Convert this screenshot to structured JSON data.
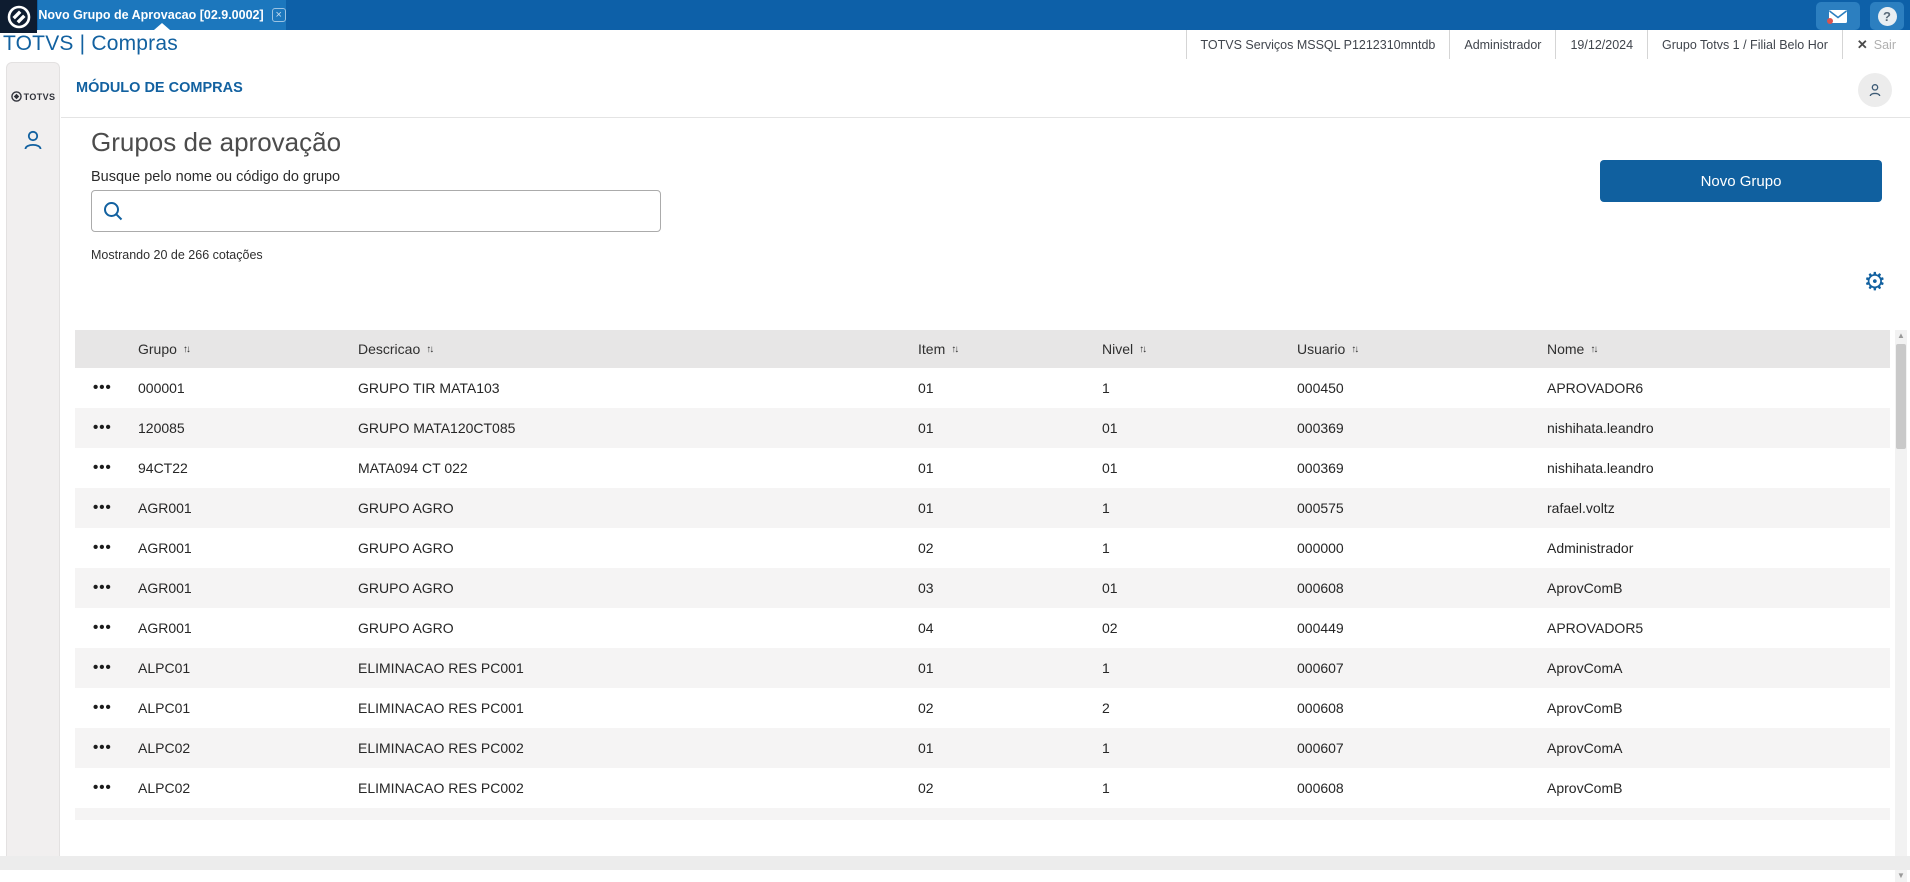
{
  "topbar": {
    "tab_label": "Novo Grupo de Aprovacao [02.9.0002]",
    "tab_close": "×",
    "help_label": "?"
  },
  "header": {
    "brand": "TOTVS | Compras",
    "info_env": "TOTVS Serviços MSSQL P1212310mntdb",
    "info_user": "Administrador",
    "info_date": "19/12/2024",
    "info_branch": "Grupo Totvs 1 / Filial Belo Hor",
    "logout_x": "✕",
    "logout_label": "Sair"
  },
  "sidebar": {
    "logo_text": "TOTVS"
  },
  "module": {
    "title": "MÓDULO DE COMPRAS"
  },
  "page": {
    "title": "Grupos de aprovação",
    "search_label": "Busque pelo nome ou código do grupo",
    "search_value": "",
    "new_group_button": "Novo Grupo",
    "results_summary": "Mostrando 20 de 266 cotações",
    "gear_icon": "⚙"
  },
  "table": {
    "columns": [
      "Grupo",
      "Descricao",
      "Item",
      "Nivel",
      "Usuario",
      "Nome"
    ],
    "sort_glyph": "↑↓",
    "row_menu_glyph": "•••",
    "rows": [
      {
        "grupo": "000001",
        "descricao": "GRUPO TIR MATA103",
        "item": "01",
        "nivel": "1",
        "usuario": "000450",
        "nome": "APROVADOR6"
      },
      {
        "grupo": "120085",
        "descricao": "GRUPO MATA120CT085",
        "item": "01",
        "nivel": "01",
        "usuario": "000369",
        "nome": "nishihata.leandro"
      },
      {
        "grupo": "94CT22",
        "descricao": "MATA094 CT 022",
        "item": "01",
        "nivel": "01",
        "usuario": "000369",
        "nome": "nishihata.leandro"
      },
      {
        "grupo": "AGR001",
        "descricao": "GRUPO AGRO",
        "item": "01",
        "nivel": "1",
        "usuario": "000575",
        "nome": "rafael.voltz"
      },
      {
        "grupo": "AGR001",
        "descricao": "GRUPO AGRO",
        "item": "02",
        "nivel": "1",
        "usuario": "000000",
        "nome": "Administrador"
      },
      {
        "grupo": "AGR001",
        "descricao": "GRUPO AGRO",
        "item": "03",
        "nivel": "01",
        "usuario": "000608",
        "nome": "AprovComB"
      },
      {
        "grupo": "AGR001",
        "descricao": "GRUPO AGRO",
        "item": "04",
        "nivel": "02",
        "usuario": "000449",
        "nome": "APROVADOR5"
      },
      {
        "grupo": "ALPC01",
        "descricao": "ELIMINACAO RES PC001",
        "item": "01",
        "nivel": "1",
        "usuario": "000607",
        "nome": "AprovComA"
      },
      {
        "grupo": "ALPC01",
        "descricao": "ELIMINACAO RES PC001",
        "item": "02",
        "nivel": "2",
        "usuario": "000608",
        "nome": "AprovComB"
      },
      {
        "grupo": "ALPC02",
        "descricao": "ELIMINACAO RES PC002",
        "item": "01",
        "nivel": "1",
        "usuario": "000607",
        "nome": "AprovComA"
      },
      {
        "grupo": "ALPC02",
        "descricao": "ELIMINACAO RES PC002",
        "item": "02",
        "nivel": "1",
        "usuario": "000608",
        "nome": "AprovComB"
      }
    ]
  },
  "scrollbar": {
    "up": "▲",
    "down": "▼"
  },
  "colors": {
    "topbar": "#0d60a8",
    "tab": "#1c77bd",
    "accent": "#1261a0",
    "button": "#10609f",
    "table_header_bg": "#e7e6e6",
    "row_alt_bg": "#f5f4f4",
    "notification_dot": "#d9534f"
  }
}
